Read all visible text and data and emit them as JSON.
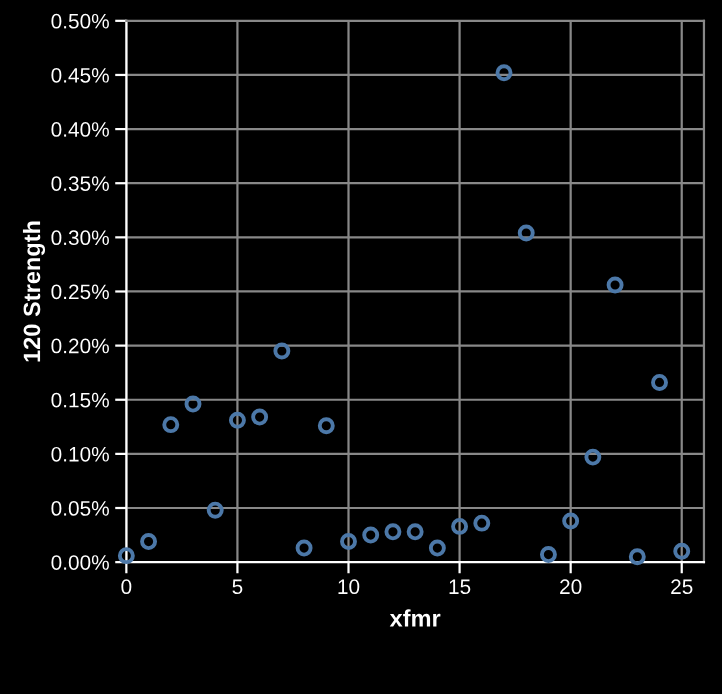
{
  "chart_data": {
    "type": "scatter",
    "xlabel": "xfmr",
    "ylabel": "120 Strength",
    "x": [
      0,
      1,
      2,
      3,
      4,
      5,
      6,
      7,
      8,
      9,
      10,
      11,
      12,
      13,
      14,
      15,
      16,
      17,
      18,
      19,
      20,
      21,
      22,
      23,
      24,
      25
    ],
    "values": [
      0.006,
      0.019,
      0.127,
      0.146,
      0.048,
      0.131,
      0.134,
      0.195,
      0.013,
      0.126,
      0.019,
      0.025,
      0.028,
      0.028,
      0.013,
      0.033,
      0.036,
      0.452,
      0.304,
      0.007,
      0.038,
      0.097,
      0.256,
      0.005,
      0.166,
      0.01
    ],
    "color": "#4c78a8",
    "marker": "circle",
    "xlim": [
      0,
      26
    ],
    "xticks": [
      0,
      5,
      10,
      15,
      20,
      25
    ],
    "ylim": [
      0,
      0.5
    ],
    "yticks": [
      {
        "value": 0,
        "label": "0.00%"
      },
      {
        "value": 0.05,
        "label": "0.05%"
      },
      {
        "value": 0.1,
        "label": "0.10%"
      },
      {
        "value": 0.15,
        "label": "0.15%"
      },
      {
        "value": 0.2,
        "label": "0.20%"
      },
      {
        "value": 0.25,
        "label": "0.25%"
      },
      {
        "value": 0.3,
        "label": "0.30%"
      },
      {
        "value": 0.35,
        "label": "0.35%"
      },
      {
        "value": 0.4,
        "label": "0.40%"
      },
      {
        "value": 0.45,
        "label": "0.45%"
      },
      {
        "value": 0.5,
        "label": "0.50%"
      }
    ],
    "grid": true
  }
}
